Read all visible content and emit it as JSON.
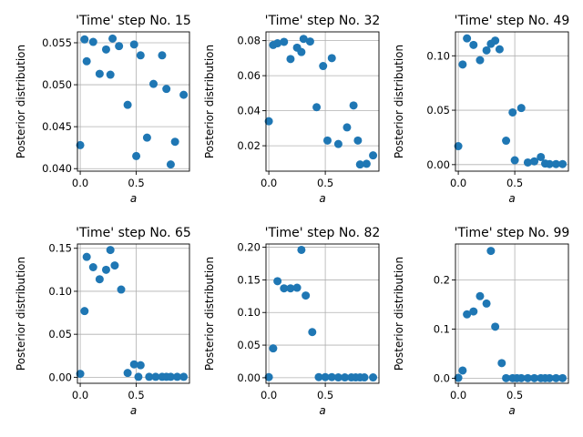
{
  "figure": {
    "marker_color": "#1f77b4",
    "grid_color": "#b0b0b0"
  },
  "chart_data": [
    {
      "type": "scatter",
      "title": "'Time' step No. 15",
      "xlabel": "a",
      "ylabel": "Posterior distribution",
      "grid": true,
      "xlim": [
        -0.025,
        0.975
      ],
      "ylim": [
        0.0397,
        0.0563
      ],
      "xticks": [
        0.0,
        0.5
      ],
      "xtick_labels": [
        "0.0",
        "0.5"
      ],
      "yticks": [
        0.04,
        0.045,
        0.05,
        0.055
      ],
      "ytick_labels": [
        "0.040",
        "0.045",
        "0.050",
        "0.055"
      ],
      "x": [
        0.0,
        0.0385,
        0.0577,
        0.1154,
        0.1731,
        0.2308,
        0.2692,
        0.2885,
        0.3462,
        0.4231,
        0.4808,
        0.5,
        0.5385,
        0.5962,
        0.6538,
        0.7308,
        0.7692,
        0.8077,
        0.8462,
        0.9231
      ],
      "y": [
        0.0428,
        0.0554,
        0.0528,
        0.0551,
        0.0513,
        0.0542,
        0.0512,
        0.0555,
        0.0546,
        0.0476,
        0.0548,
        0.0415,
        0.0535,
        0.0437,
        0.0501,
        0.0535,
        0.0495,
        0.0405,
        0.0432,
        0.0488
      ]
    },
    {
      "type": "scatter",
      "title": "'Time' step No. 32",
      "xlabel": "a",
      "ylabel": "Posterior distribution",
      "grid": true,
      "xlim": [
        -0.025,
        0.975
      ],
      "ylim": [
        0.0055,
        0.085
      ],
      "xticks": [
        0.0,
        0.5
      ],
      "xtick_labels": [
        "0.0",
        "0.5"
      ],
      "yticks": [
        0.02,
        0.04,
        0.06,
        0.08
      ],
      "ytick_labels": [
        "0.02",
        "0.04",
        "0.06",
        "0.08"
      ],
      "x": [
        0.0,
        0.0385,
        0.0769,
        0.1346,
        0.1923,
        0.25,
        0.2885,
        0.3077,
        0.3654,
        0.4231,
        0.4808,
        0.5192,
        0.5577,
        0.6154,
        0.6923,
        0.75,
        0.7885,
        0.8077,
        0.8654,
        0.9231
      ],
      "y": [
        0.034,
        0.0775,
        0.0785,
        0.0793,
        0.0695,
        0.076,
        0.0735,
        0.081,
        0.0795,
        0.042,
        0.0655,
        0.023,
        0.07,
        0.021,
        0.0305,
        0.043,
        0.023,
        0.0093,
        0.0097,
        0.0145
      ]
    },
    {
      "type": "scatter",
      "title": "'Time' step No. 49",
      "xlabel": "a",
      "ylabel": "Posterior distribution",
      "grid": true,
      "xlim": [
        -0.025,
        0.975
      ],
      "ylim": [
        -0.006,
        0.122
      ],
      "xticks": [
        0.0,
        0.5
      ],
      "xtick_labels": [
        "0.0",
        "0.5"
      ],
      "yticks": [
        0.0,
        0.05,
        0.1
      ],
      "ytick_labels": [
        "0.00",
        "0.05",
        "0.10"
      ],
      "x": [
        0.0,
        0.0385,
        0.0769,
        0.1346,
        0.1923,
        0.25,
        0.2885,
        0.3269,
        0.3654,
        0.4231,
        0.4808,
        0.5,
        0.5577,
        0.6154,
        0.6731,
        0.7308,
        0.7692,
        0.8077,
        0.8654,
        0.9231
      ],
      "y": [
        0.017,
        0.092,
        0.116,
        0.11,
        0.096,
        0.105,
        0.111,
        0.114,
        0.106,
        0.022,
        0.048,
        0.004,
        0.052,
        0.002,
        0.003,
        0.007,
        0.001,
        0.0005,
        0.0005,
        0.0005
      ]
    },
    {
      "type": "scatter",
      "title": "'Time' step No. 65",
      "xlabel": "a",
      "ylabel": "Posterior distribution",
      "grid": true,
      "xlim": [
        -0.025,
        0.975
      ],
      "ylim": [
        -0.007,
        0.155
      ],
      "xticks": [
        0.0,
        0.5
      ],
      "xtick_labels": [
        "0.0",
        "0.5"
      ],
      "yticks": [
        0.0,
        0.05,
        0.1,
        0.15
      ],
      "ytick_labels": [
        "0.00",
        "0.05",
        "0.10",
        "0.15"
      ],
      "x": [
        0.0,
        0.0385,
        0.0577,
        0.1154,
        0.1731,
        0.2308,
        0.2692,
        0.3077,
        0.3654,
        0.4231,
        0.4808,
        0.5192,
        0.5385,
        0.6154,
        0.6731,
        0.7308,
        0.7692,
        0.8077,
        0.8654,
        0.9231
      ],
      "y": [
        0.004,
        0.077,
        0.14,
        0.128,
        0.114,
        0.125,
        0.148,
        0.13,
        0.102,
        0.005,
        0.015,
        0.0005,
        0.014,
        0.0005,
        0.0005,
        0.0005,
        0.0005,
        0.0005,
        0.0005,
        0.0005
      ]
    },
    {
      "type": "scatter",
      "title": "'Time' step No. 82",
      "xlabel": "a",
      "ylabel": "Posterior distribution",
      "grid": true,
      "xlim": [
        -0.025,
        0.975
      ],
      "ylim": [
        -0.0085,
        0.205
      ],
      "xticks": [
        0.0,
        0.5
      ],
      "xtick_labels": [
        "0.0",
        "0.5"
      ],
      "yticks": [
        0.0,
        0.05,
        0.1,
        0.15,
        0.2
      ],
      "ytick_labels": [
        "0.00",
        "0.05",
        "0.10",
        "0.15",
        "0.20"
      ],
      "x": [
        0.0,
        0.0385,
        0.0769,
        0.1346,
        0.1923,
        0.25,
        0.2885,
        0.3269,
        0.3846,
        0.4423,
        0.5,
        0.5577,
        0.6154,
        0.6731,
        0.7308,
        0.7692,
        0.8077,
        0.8462,
        0.9231
      ],
      "y": [
        0.001,
        0.045,
        0.148,
        0.137,
        0.137,
        0.138,
        0.196,
        0.126,
        0.07,
        0.001,
        0.001,
        0.001,
        0.0005,
        0.0005,
        0.0005,
        0.0005,
        0.0005,
        0.0005,
        0.0005
      ]
    },
    {
      "type": "scatter",
      "title": "'Time' step No. 99",
      "xlabel": "a",
      "ylabel": "Posterior distribution",
      "grid": true,
      "xlim": [
        -0.025,
        0.975
      ],
      "ylim": [
        -0.01,
        0.273
      ],
      "xticks": [
        0.0,
        0.5
      ],
      "xtick_labels": [
        "0.0",
        "0.5"
      ],
      "yticks": [
        0.0,
        0.1,
        0.2
      ],
      "ytick_labels": [
        "0.0",
        "0.1",
        "0.2"
      ],
      "x": [
        0.0,
        0.0385,
        0.0769,
        0.1346,
        0.1923,
        0.25,
        0.2885,
        0.3269,
        0.3846,
        0.4231,
        0.4808,
        0.5192,
        0.5577,
        0.6154,
        0.6731,
        0.7308,
        0.7692,
        0.8077,
        0.8654,
        0.9231
      ],
      "y": [
        0.001,
        0.016,
        0.13,
        0.136,
        0.167,
        0.152,
        0.259,
        0.105,
        0.031,
        0.0005,
        0.0005,
        0.0005,
        0.0005,
        0.0005,
        0.0005,
        0.0005,
        0.0005,
        0.0005,
        0.0005,
        0.0005
      ]
    }
  ]
}
